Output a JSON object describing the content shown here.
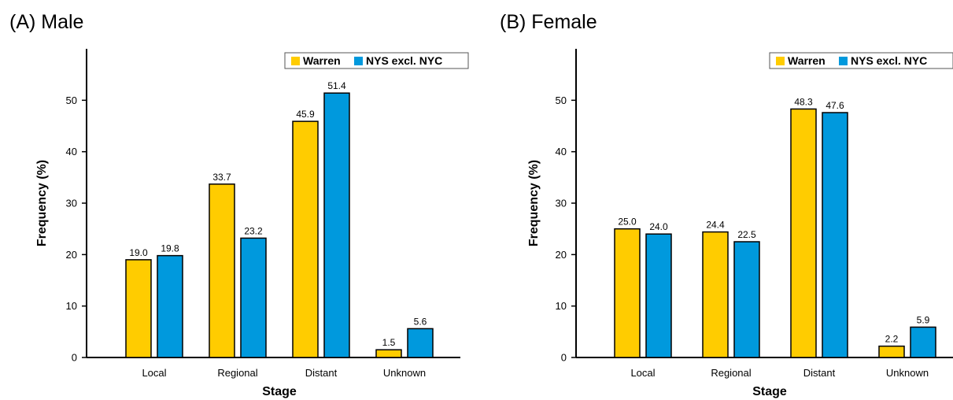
{
  "chart_data": [
    {
      "type": "bar",
      "panel_title": "(A) Male",
      "categories": [
        "Local",
        "Regional",
        "Distant",
        "Unknown"
      ],
      "series": [
        {
          "name": "Warren",
          "color": "#FFCC00",
          "values": [
            19.0,
            33.7,
            45.9,
            1.5
          ]
        },
        {
          "name": "NYS excl. NYC",
          "color": "#0099DD",
          "values": [
            19.8,
            23.2,
            51.4,
            5.6
          ]
        }
      ],
      "xlabel": "Stage",
      "ylabel": "Frequency (%)",
      "ylim": [
        0,
        60
      ],
      "yticks": [
        0,
        10,
        20,
        30,
        40,
        50
      ],
      "legend": "top-right",
      "grid": false
    },
    {
      "type": "bar",
      "panel_title": "(B) Female",
      "categories": [
        "Local",
        "Regional",
        "Distant",
        "Unknown"
      ],
      "series": [
        {
          "name": "Warren",
          "color": "#FFCC00",
          "values": [
            25.0,
            24.4,
            48.3,
            2.2
          ]
        },
        {
          "name": "NYS excl. NYC",
          "color": "#0099DD",
          "values": [
            24.0,
            22.5,
            47.6,
            5.9
          ]
        }
      ],
      "xlabel": "Stage",
      "ylabel": "Frequency (%)",
      "ylim": [
        0,
        60
      ],
      "yticks": [
        0,
        10,
        20,
        30,
        40,
        50
      ],
      "legend": "top-right",
      "grid": false
    }
  ]
}
